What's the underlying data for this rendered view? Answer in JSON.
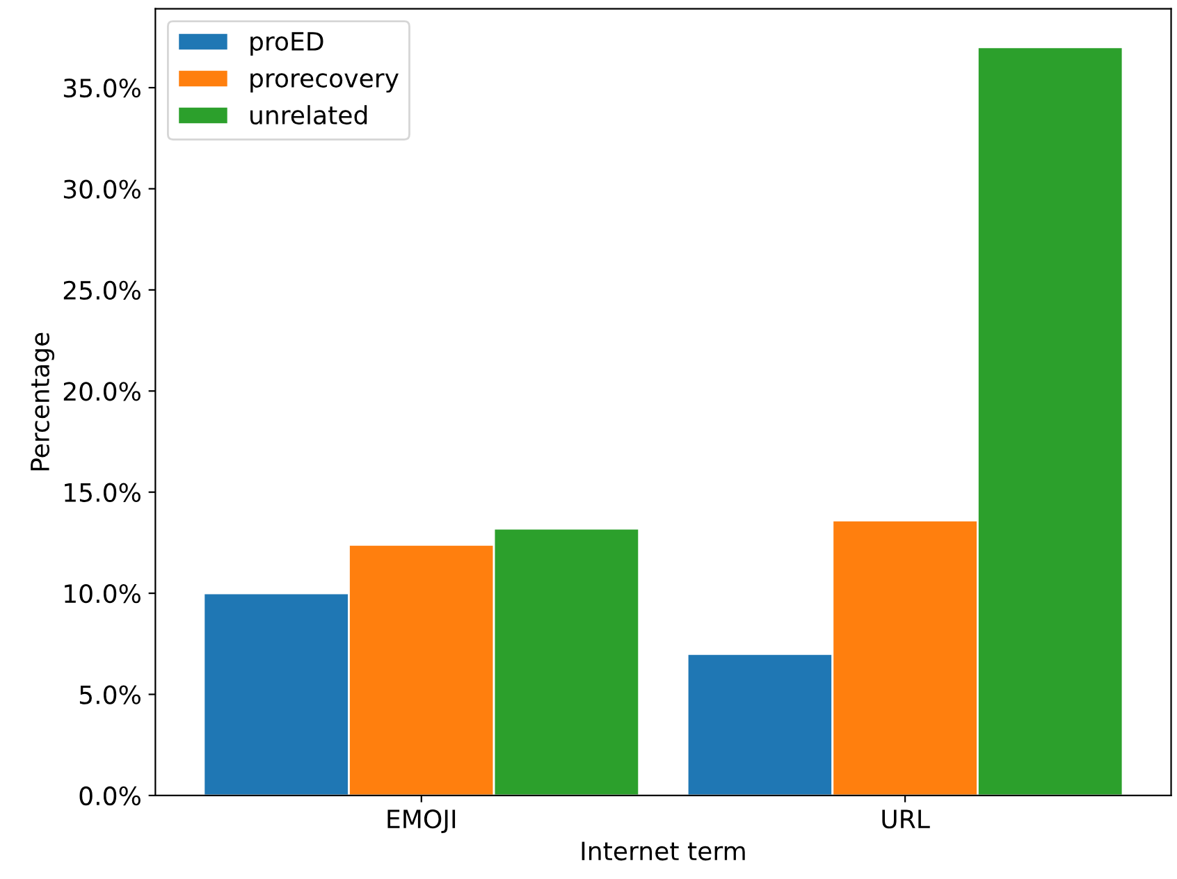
{
  "chart_data": {
    "type": "bar",
    "xlabel": "Internet term",
    "ylabel": "Percentage",
    "categories": [
      "EMOJI",
      "URL"
    ],
    "series": [
      {
        "name": "proED",
        "color": "#1f77b4",
        "values": [
          10.0,
          7.0
        ]
      },
      {
        "name": "prorecovery",
        "color": "#ff7f0e",
        "values": [
          12.4,
          13.6
        ]
      },
      {
        "name": "unrelated",
        "color": "#2ca02c",
        "values": [
          13.2,
          37.0
        ]
      }
    ],
    "ylim": [
      0,
      38.9
    ],
    "yticks": [
      {
        "value": 0,
        "label": "0.0%"
      },
      {
        "value": 5,
        "label": "5.0%"
      },
      {
        "value": 10,
        "label": "10.0%"
      },
      {
        "value": 15,
        "label": "15.0%"
      },
      {
        "value": 20,
        "label": "20.0%"
      },
      {
        "value": 25,
        "label": "25.0%"
      },
      {
        "value": 30,
        "label": "30.0%"
      },
      {
        "value": 35,
        "label": "35.0%"
      }
    ],
    "grid": false,
    "legend": "top left"
  }
}
